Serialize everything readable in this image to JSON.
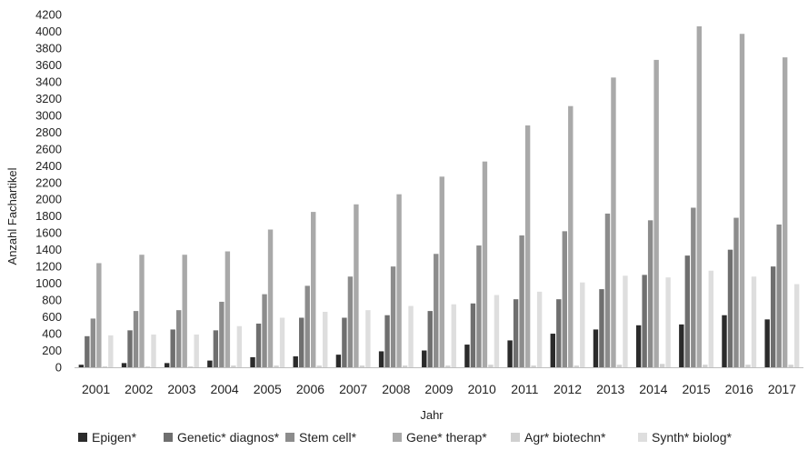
{
  "chart_data": {
    "type": "bar",
    "title": "",
    "xlabel": "Jahr",
    "ylabel": "Anzahl Fachartikel",
    "ylim": [
      0,
      4200
    ],
    "y_ticks": [
      "0",
      "200",
      "400",
      "600",
      "800",
      "1000",
      "1200",
      "1400",
      "1600",
      "1800",
      "2000",
      "2200",
      "2400",
      "2600",
      "2800",
      "3000",
      "3200",
      "3400",
      "3600",
      "3800",
      "4000",
      "4200"
    ],
    "grid": false,
    "legend_position": "bottom",
    "categories": [
      "2001",
      "2002",
      "2003",
      "2004",
      "2005",
      "2006",
      "2007",
      "2008",
      "2009",
      "2010",
      "2011",
      "2012",
      "2013",
      "2014",
      "2015",
      "2016",
      "2017"
    ],
    "series": [
      {
        "name": "Epigen*",
        "color": "#2b2b2b",
        "values": [
          30,
          50,
          50,
          80,
          120,
          130,
          150,
          190,
          200,
          270,
          320,
          400,
          450,
          500,
          510,
          620,
          570
        ]
      },
      {
        "name": "Genetic* diagnos*",
        "color": "#6f6f6f",
        "values": [
          370,
          440,
          450,
          440,
          520,
          590,
          590,
          620,
          670,
          760,
          810,
          810,
          930,
          1100,
          1330,
          1400,
          1200
        ]
      },
      {
        "name": "Stem cell*",
        "color": "#8c8c8c",
        "values": [
          580,
          670,
          680,
          780,
          870,
          970,
          1080,
          1200,
          1350,
          1450,
          1570,
          1620,
          1830,
          1750,
          1900,
          1780,
          1700
        ]
      },
      {
        "name": "Gene* therap*",
        "color": "#a9a9a9",
        "values": [
          1240,
          1340,
          1340,
          1380,
          1640,
          1850,
          1940,
          2060,
          2270,
          2450,
          2880,
          3110,
          3450,
          3660,
          4060,
          3970,
          3690
        ]
      },
      {
        "name": "Agr* biotechn*",
        "color": "#d0d0d0",
        "values": [
          10,
          10,
          10,
          20,
          20,
          20,
          20,
          20,
          20,
          30,
          20,
          20,
          30,
          40,
          30,
          30,
          30
        ]
      },
      {
        "name": "Synth* biolog*",
        "color": "#dedede",
        "values": [
          380,
          390,
          390,
          490,
          590,
          660,
          680,
          730,
          750,
          860,
          900,
          1010,
          1090,
          1070,
          1150,
          1080,
          990
        ]
      }
    ]
  }
}
